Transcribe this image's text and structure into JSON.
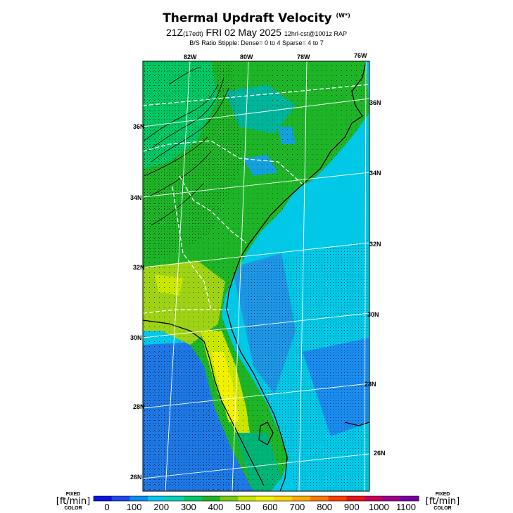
{
  "header": {
    "title": "Thermal Updraft Velocity",
    "title_units": "(W*)",
    "subtitle_main": "21Z",
    "subtitle_local": "(17edt)",
    "subtitle_date": "FRI 02 May 2025",
    "subtitle_run": "12hrl-cst@1001z RAP",
    "stipple_note": "B/S Ratio Stipple:  Dense= 0 to 4  Sparse= 4 to 7"
  },
  "map": {
    "region": "Southeast US",
    "lon_labels_top": [
      "82W",
      "80W",
      "78W",
      "76W"
    ],
    "lat_labels_left": [
      "36N",
      "34N",
      "32N",
      "30N",
      "28N",
      "26N"
    ],
    "lat_labels_right": [
      "36N",
      "34N",
      "32N",
      "30N",
      "28N",
      "26N"
    ]
  },
  "colorbar": {
    "left_label_top": "FIXED",
    "left_label_units": "[ft/min]",
    "left_label_bottom": "COLOR",
    "right_label_top": "FIXED",
    "right_label_units": "[ft/min]",
    "right_label_bottom": "COLOR",
    "ticks": [
      "0",
      "100",
      "200",
      "300",
      "400",
      "500",
      "600",
      "700",
      "800",
      "900",
      "1000",
      "1100"
    ],
    "colors": [
      "#0a14e6",
      "#1e46f0",
      "#0a8cf0",
      "#00c8f0",
      "#00d2b4",
      "#00c864",
      "#1eb428",
      "#78c814",
      "#c8e600",
      "#f0f000",
      "#ffd200",
      "#ffaa00",
      "#ff7800",
      "#ff3c00",
      "#e61414",
      "#c8005a",
      "#a0008c",
      "#7800a0"
    ]
  }
}
